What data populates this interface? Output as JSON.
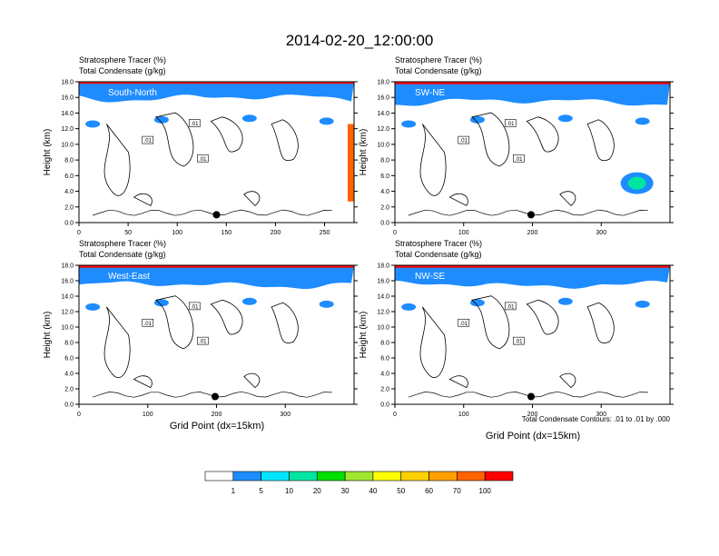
{
  "figure": {
    "title": "2014-02-20_12:00:00",
    "xlabel": "Grid Point (dx=15km)",
    "contour_note": "Total Condensate Contours: .01 to .01 by .000"
  },
  "colorbar": {
    "colors": [
      "#ffffff",
      "#1e8cff",
      "#00e5ff",
      "#00e6a0",
      "#00e000",
      "#a0e632",
      "#ffff00",
      "#ffd000",
      "#ffa000",
      "#ff6400",
      "#ff0000"
    ],
    "labels": [
      "1",
      "5",
      "10",
      "20",
      "30",
      "40",
      "50",
      "60",
      "70",
      "100"
    ]
  },
  "chart_data": [
    {
      "type": "heatmap",
      "panel": "South-North",
      "line1": "Stratosphere Tracer   (%)",
      "line2": "Total Condensate   (g/kg)",
      "ylabel": "Height (km)",
      "xlim": [
        0,
        280
      ],
      "ylim": [
        0,
        18
      ],
      "xticks": [
        0,
        50,
        100,
        150,
        200,
        250
      ],
      "yticks": [
        "0.0",
        "2.0",
        "4.0",
        "6.0",
        "8.0",
        "10.0",
        "12.0",
        "14.0",
        "16.0",
        "18.0"
      ],
      "tracer_level_km": 16.0,
      "contour_label": ".01",
      "marker": {
        "x": 140,
        "y": 1.0
      }
    },
    {
      "type": "heatmap",
      "panel": "SW-NE",
      "line1": "Stratosphere Tracer   (%)",
      "line2": "Total Condensate   (g/kg)",
      "ylabel": "Height (km)",
      "xlim": [
        0,
        400
      ],
      "ylim": [
        0,
        18
      ],
      "xticks": [
        0,
        100,
        200,
        300
      ],
      "yticks": [
        "0.0",
        "2.0",
        "4.0",
        "6.0",
        "8.0",
        "10.0",
        "12.0",
        "14.0",
        "16.0",
        "18.0"
      ],
      "tracer_level_km": 15.5,
      "contour_label": ".01",
      "marker": {
        "x": 198,
        "y": 1.0
      }
    },
    {
      "type": "heatmap",
      "panel": "West-East",
      "line1": "Stratosphere Tracer   (%)",
      "line2": "Total Condensate   (g/kg)",
      "ylabel": "Height (km)",
      "xlim": [
        0,
        400
      ],
      "ylim": [
        0,
        18
      ],
      "xticks": [
        0,
        100,
        200,
        300
      ],
      "yticks": [
        "0.0",
        "2.0",
        "4.0",
        "6.0",
        "8.0",
        "10.0",
        "12.0",
        "14.0",
        "16.0",
        "18.0"
      ],
      "tracer_level_km": 15.5,
      "contour_label": ".01",
      "marker": {
        "x": 198,
        "y": 1.0
      }
    },
    {
      "type": "heatmap",
      "panel": "NW-SE",
      "line1": "Stratosphere Tracer   (%)",
      "line2": "Total Condensate   (g/kg)",
      "ylabel": "Height (km)",
      "xlim": [
        0,
        400
      ],
      "ylim": [
        0,
        18
      ],
      "xticks": [
        0,
        100,
        200,
        300
      ],
      "yticks": [
        "0.0",
        "2.0",
        "4.0",
        "6.0",
        "8.0",
        "10.0",
        "12.0",
        "14.0",
        "16.0",
        "18.0"
      ],
      "tracer_level_km": 15.5,
      "contour_label": ".01",
      "marker": {
        "x": 198,
        "y": 1.0
      }
    }
  ]
}
